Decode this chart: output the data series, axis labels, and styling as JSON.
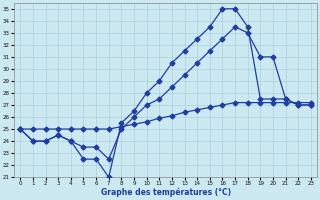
{
  "xlabel": "Graphe des températures (°C)",
  "xlim": [
    -0.5,
    23.5
  ],
  "ylim": [
    21,
    35.5
  ],
  "xticks": [
    0,
    1,
    2,
    3,
    4,
    5,
    6,
    7,
    8,
    9,
    10,
    11,
    12,
    13,
    14,
    15,
    16,
    17,
    18,
    19,
    20,
    21,
    22,
    23
  ],
  "yticks": [
    21,
    22,
    23,
    24,
    25,
    26,
    27,
    28,
    29,
    30,
    31,
    32,
    33,
    34,
    35
  ],
  "background_color": "#cce8f0",
  "grid_color": "#aad0de",
  "line_color": "#1f3fa0",
  "line1_x": [
    0,
    1,
    2,
    3,
    4,
    5,
    6,
    7,
    8,
    9,
    10,
    11,
    12,
    13,
    14,
    15,
    16,
    17,
    18,
    19,
    20,
    21,
    22,
    23
  ],
  "line1_y": [
    25.0,
    24.0,
    24.0,
    24.5,
    24.0,
    22.5,
    22.5,
    21.0,
    25.5,
    26.5,
    28.0,
    29.0,
    30.5,
    31.5,
    32.5,
    33.5,
    35.0,
    35.0,
    33.5,
    27.5,
    27.5,
    27.5,
    27.0,
    27.0
  ],
  "line2_x": [
    0,
    1,
    2,
    3,
    4,
    5,
    6,
    7,
    8,
    9,
    10,
    11,
    12,
    13,
    14,
    15,
    16,
    17,
    18,
    19,
    20,
    21,
    22,
    23
  ],
  "line2_y": [
    25.0,
    24.0,
    24.0,
    24.5,
    24.0,
    23.5,
    23.5,
    22.5,
    25.0,
    26.0,
    27.0,
    27.5,
    28.5,
    29.5,
    30.5,
    31.5,
    32.5,
    33.5,
    33.0,
    31.0,
    31.0,
    27.5,
    27.0,
    27.0
  ],
  "line3_x": [
    0,
    1,
    2,
    3,
    4,
    5,
    6,
    7,
    8,
    9,
    10,
    11,
    12,
    13,
    14,
    15,
    16,
    17,
    18,
    19,
    20,
    21,
    22,
    23
  ],
  "line3_y": [
    25.0,
    25.0,
    25.0,
    25.0,
    25.0,
    25.0,
    25.0,
    25.0,
    25.2,
    25.4,
    25.6,
    25.9,
    26.1,
    26.4,
    26.6,
    26.8,
    27.0,
    27.2,
    27.2,
    27.2,
    27.2,
    27.2,
    27.2,
    27.2
  ]
}
